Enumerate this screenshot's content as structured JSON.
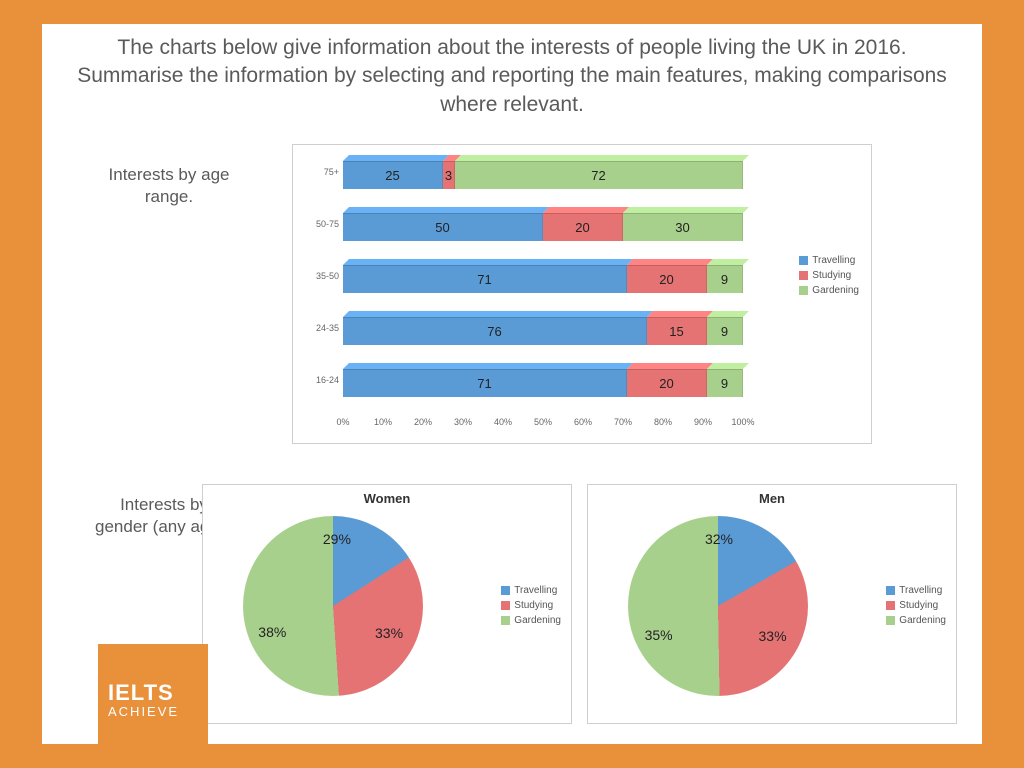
{
  "title_text": "The charts below give information about the interests of people living the UK in 2016. Summarise the information by selecting and reporting the main features, making comparisons where relevant.",
  "label_age": "Interests by age range.",
  "label_gender": "Interests by gender (any ages)",
  "logo": {
    "line1": "IELTS",
    "line2": "ACHIEVE",
    "bg": "#e8903a",
    "fg": "#ffffff"
  },
  "colors": {
    "travelling": "#5b9bd5",
    "studying": "#e57373",
    "gardening": "#a8d08d",
    "border": "#cfcfcf",
    "text": "#5a5a5a",
    "frame_bg": "#ffffff",
    "page_bg": "#e8903a"
  },
  "bar_chart": {
    "type": "stacked_horizontal_bar_3d",
    "x_axis": {
      "min": 0,
      "max": 100,
      "step": 10,
      "suffix": "%"
    },
    "series_order": [
      "travelling",
      "studying",
      "gardening"
    ],
    "categories": [
      {
        "label": "75+",
        "values": {
          "travelling": 25,
          "studying": 3,
          "gardening": 72
        }
      },
      {
        "label": "50-75",
        "values": {
          "travelling": 50,
          "studying": 20,
          "gardening": 30
        }
      },
      {
        "label": "35-50",
        "values": {
          "travelling": 71,
          "studying": 20,
          "gardening": 9
        }
      },
      {
        "label": "24-35",
        "values": {
          "travelling": 76,
          "studying": 15,
          "gardening": 9
        }
      },
      {
        "label": "16-24",
        "values": {
          "travelling": 71,
          "studying": 20,
          "gardening": 9
        }
      }
    ],
    "legend": [
      {
        "key": "travelling",
        "label": "Travelling"
      },
      {
        "key": "studying",
        "label": "Studying"
      },
      {
        "key": "gardening",
        "label": "Gardening"
      }
    ],
    "label_fontsize": 13,
    "axis_fontsize": 9
  },
  "pies": {
    "women": {
      "title": "Women",
      "slices": [
        {
          "key": "travelling",
          "value": 29,
          "label": "29%"
        },
        {
          "key": "studying",
          "value": 33,
          "label": "33%"
        },
        {
          "key": "gardening",
          "value": 38,
          "label": "38%"
        }
      ]
    },
    "men": {
      "title": "Men",
      "slices": [
        {
          "key": "travelling",
          "value": 32,
          "label": "32%"
        },
        {
          "key": "studying",
          "value": 33,
          "label": "33%"
        },
        {
          "key": "gardening",
          "value": 35,
          "label": "35%"
        }
      ]
    },
    "legend": [
      {
        "key": "travelling",
        "label": "Travelling"
      },
      {
        "key": "studying",
        "label": "Studying"
      },
      {
        "key": "gardening",
        "label": "Gardening"
      }
    ]
  }
}
